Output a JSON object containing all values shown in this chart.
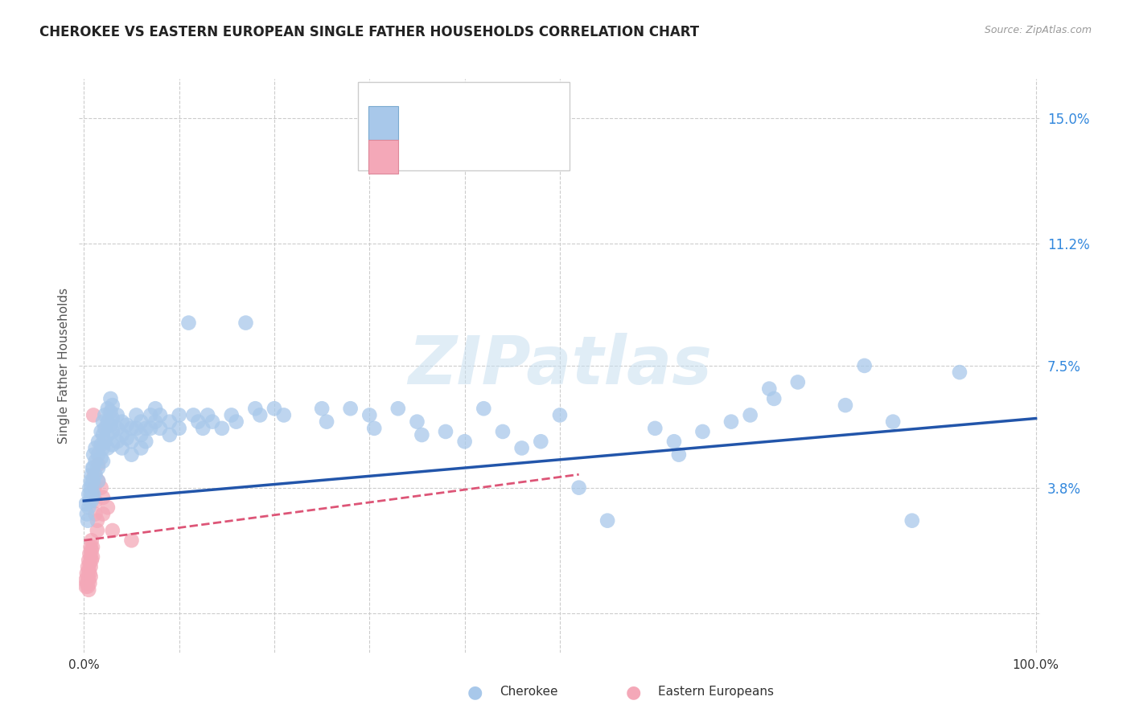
{
  "title": "CHEROKEE VS EASTERN EUROPEAN SINGLE FATHER HOUSEHOLDS CORRELATION CHART",
  "source": "Source: ZipAtlas.com",
  "ylabel": "Single Father Households",
  "yticks": [
    0.0,
    0.038,
    0.075,
    0.112,
    0.15
  ],
  "ytick_labels": [
    "",
    "3.8%",
    "7.5%",
    "11.2%",
    "15.0%"
  ],
  "xlim": [
    -0.005,
    1.005
  ],
  "ylim": [
    -0.012,
    0.162
  ],
  "watermark": "ZIPatlas",
  "cherokee_color": "#a8c8ea",
  "cherokee_line_color": "#2255aa",
  "eastern_color": "#f4a8b8",
  "eastern_line_color": "#dd5577",
  "grid_color": "#cccccc",
  "title_color": "#222222",
  "axis_label_color": "#555555",
  "right_tick_color": "#3388dd",
  "cherokee_scatter": [
    [
      0.002,
      0.033
    ],
    [
      0.003,
      0.03
    ],
    [
      0.004,
      0.028
    ],
    [
      0.005,
      0.036
    ],
    [
      0.005,
      0.032
    ],
    [
      0.006,
      0.038
    ],
    [
      0.006,
      0.034
    ],
    [
      0.007,
      0.04
    ],
    [
      0.007,
      0.036
    ],
    [
      0.008,
      0.042
    ],
    [
      0.008,
      0.038
    ],
    [
      0.008,
      0.034
    ],
    [
      0.009,
      0.044
    ],
    [
      0.009,
      0.04
    ],
    [
      0.009,
      0.036
    ],
    [
      0.01,
      0.048
    ],
    [
      0.01,
      0.044
    ],
    [
      0.01,
      0.04
    ],
    [
      0.01,
      0.036
    ],
    [
      0.012,
      0.05
    ],
    [
      0.012,
      0.046
    ],
    [
      0.012,
      0.042
    ],
    [
      0.015,
      0.052
    ],
    [
      0.015,
      0.048
    ],
    [
      0.015,
      0.044
    ],
    [
      0.015,
      0.04
    ],
    [
      0.018,
      0.055
    ],
    [
      0.018,
      0.051
    ],
    [
      0.018,
      0.047
    ],
    [
      0.02,
      0.058
    ],
    [
      0.02,
      0.054
    ],
    [
      0.02,
      0.05
    ],
    [
      0.02,
      0.046
    ],
    [
      0.022,
      0.06
    ],
    [
      0.022,
      0.056
    ],
    [
      0.022,
      0.052
    ],
    [
      0.025,
      0.062
    ],
    [
      0.025,
      0.058
    ],
    [
      0.025,
      0.054
    ],
    [
      0.025,
      0.05
    ],
    [
      0.028,
      0.065
    ],
    [
      0.028,
      0.061
    ],
    [
      0.028,
      0.057
    ],
    [
      0.03,
      0.063
    ],
    [
      0.03,
      0.059
    ],
    [
      0.03,
      0.055
    ],
    [
      0.03,
      0.051
    ],
    [
      0.035,
      0.06
    ],
    [
      0.035,
      0.056
    ],
    [
      0.035,
      0.052
    ],
    [
      0.04,
      0.058
    ],
    [
      0.04,
      0.054
    ],
    [
      0.04,
      0.05
    ],
    [
      0.045,
      0.057
    ],
    [
      0.045,
      0.053
    ],
    [
      0.05,
      0.056
    ],
    [
      0.05,
      0.052
    ],
    [
      0.05,
      0.048
    ],
    [
      0.055,
      0.06
    ],
    [
      0.055,
      0.056
    ],
    [
      0.06,
      0.058
    ],
    [
      0.06,
      0.054
    ],
    [
      0.06,
      0.05
    ],
    [
      0.065,
      0.056
    ],
    [
      0.065,
      0.052
    ],
    [
      0.07,
      0.06
    ],
    [
      0.07,
      0.056
    ],
    [
      0.075,
      0.062
    ],
    [
      0.075,
      0.058
    ],
    [
      0.08,
      0.06
    ],
    [
      0.08,
      0.056
    ],
    [
      0.09,
      0.058
    ],
    [
      0.09,
      0.054
    ],
    [
      0.1,
      0.06
    ],
    [
      0.1,
      0.056
    ],
    [
      0.11,
      0.088
    ],
    [
      0.115,
      0.06
    ],
    [
      0.12,
      0.058
    ],
    [
      0.125,
      0.056
    ],
    [
      0.13,
      0.06
    ],
    [
      0.135,
      0.058
    ],
    [
      0.145,
      0.056
    ],
    [
      0.155,
      0.06
    ],
    [
      0.16,
      0.058
    ],
    [
      0.17,
      0.088
    ],
    [
      0.18,
      0.062
    ],
    [
      0.185,
      0.06
    ],
    [
      0.2,
      0.062
    ],
    [
      0.21,
      0.06
    ],
    [
      0.25,
      0.062
    ],
    [
      0.255,
      0.058
    ],
    [
      0.28,
      0.062
    ],
    [
      0.3,
      0.06
    ],
    [
      0.305,
      0.056
    ],
    [
      0.33,
      0.062
    ],
    [
      0.35,
      0.058
    ],
    [
      0.355,
      0.054
    ],
    [
      0.38,
      0.055
    ],
    [
      0.4,
      0.052
    ],
    [
      0.42,
      0.062
    ],
    [
      0.44,
      0.055
    ],
    [
      0.46,
      0.05
    ],
    [
      0.48,
      0.052
    ],
    [
      0.5,
      0.06
    ],
    [
      0.52,
      0.038
    ],
    [
      0.55,
      0.028
    ],
    [
      0.6,
      0.056
    ],
    [
      0.62,
      0.052
    ],
    [
      0.625,
      0.048
    ],
    [
      0.65,
      0.055
    ],
    [
      0.68,
      0.058
    ],
    [
      0.7,
      0.06
    ],
    [
      0.72,
      0.068
    ],
    [
      0.725,
      0.065
    ],
    [
      0.75,
      0.07
    ],
    [
      0.8,
      0.063
    ],
    [
      0.82,
      0.075
    ],
    [
      0.85,
      0.058
    ],
    [
      0.87,
      0.028
    ],
    [
      0.92,
      0.073
    ]
  ],
  "eastern_scatter": [
    [
      0.002,
      0.01
    ],
    [
      0.002,
      0.008
    ],
    [
      0.003,
      0.012
    ],
    [
      0.003,
      0.009
    ],
    [
      0.004,
      0.014
    ],
    [
      0.004,
      0.011
    ],
    [
      0.004,
      0.008
    ],
    [
      0.005,
      0.016
    ],
    [
      0.005,
      0.013
    ],
    [
      0.005,
      0.01
    ],
    [
      0.005,
      0.007
    ],
    [
      0.006,
      0.018
    ],
    [
      0.006,
      0.015
    ],
    [
      0.006,
      0.012
    ],
    [
      0.006,
      0.009
    ],
    [
      0.007,
      0.02
    ],
    [
      0.007,
      0.017
    ],
    [
      0.007,
      0.014
    ],
    [
      0.007,
      0.011
    ],
    [
      0.008,
      0.022
    ],
    [
      0.008,
      0.019
    ],
    [
      0.008,
      0.016
    ],
    [
      0.009,
      0.02
    ],
    [
      0.009,
      0.017
    ],
    [
      0.01,
      0.06
    ],
    [
      0.011,
      0.042
    ],
    [
      0.011,
      0.038
    ],
    [
      0.012,
      0.034
    ],
    [
      0.012,
      0.03
    ],
    [
      0.014,
      0.028
    ],
    [
      0.014,
      0.025
    ],
    [
      0.015,
      0.045
    ],
    [
      0.015,
      0.04
    ],
    [
      0.018,
      0.038
    ],
    [
      0.02,
      0.035
    ],
    [
      0.02,
      0.03
    ],
    [
      0.025,
      0.032
    ],
    [
      0.03,
      0.025
    ],
    [
      0.05,
      0.022
    ]
  ],
  "cherokee_line": [
    [
      0.0,
      0.034
    ],
    [
      1.0,
      0.059
    ]
  ],
  "eastern_line": [
    [
      0.0,
      0.022
    ],
    [
      0.52,
      0.042
    ]
  ],
  "background_color": "#ffffff"
}
